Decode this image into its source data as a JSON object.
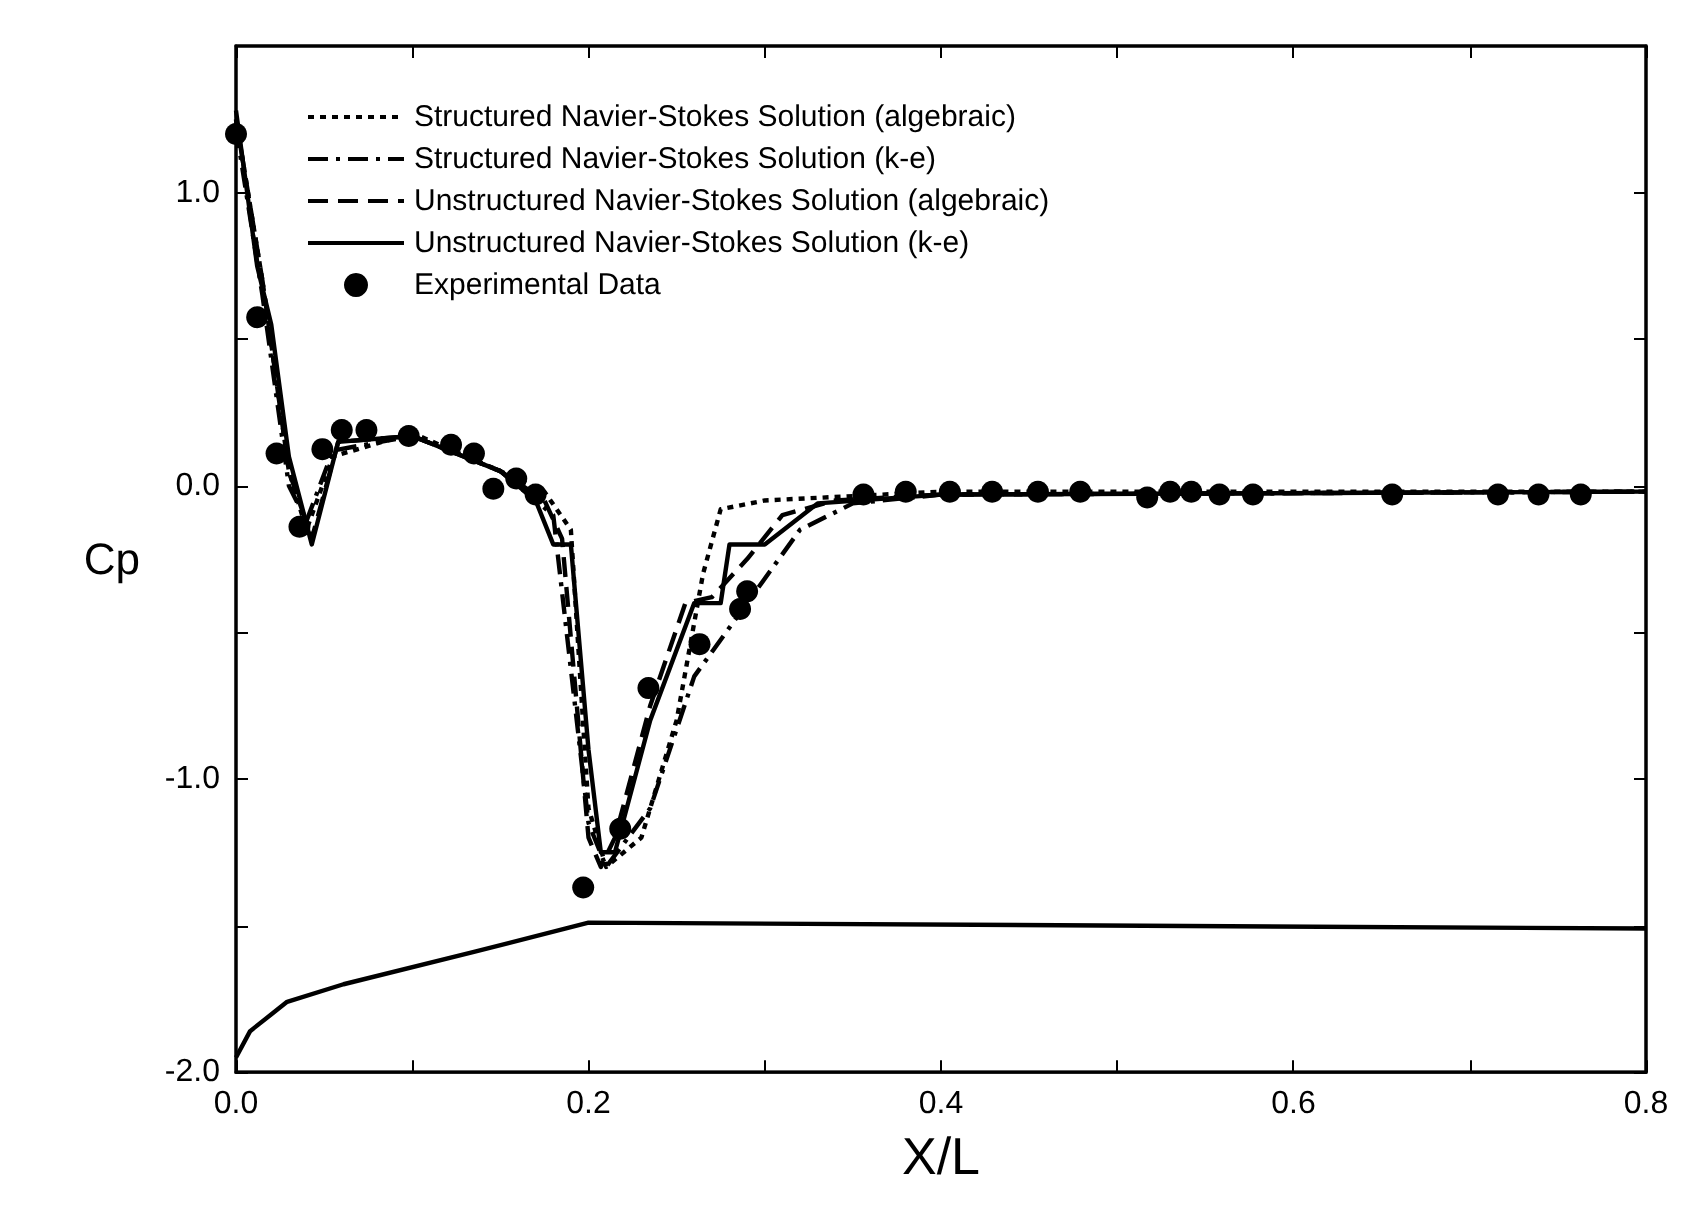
{
  "chart_data": {
    "type": "line",
    "xlabel": "X/L",
    "ylabel": "Cp",
    "xlim": [
      0,
      0.8
    ],
    "ylim": [
      -2,
      1.5
    ],
    "xticks": [
      {
        "value": 0,
        "label": "0.0"
      },
      {
        "value": 0.1,
        "label": null
      },
      {
        "value": 0.2,
        "label": "0.2"
      },
      {
        "value": 0.3,
        "label": null
      },
      {
        "value": 0.4,
        "label": "0.4"
      },
      {
        "value": 0.5,
        "label": null
      },
      {
        "value": 0.6,
        "label": "0.6"
      },
      {
        "value": 0.7,
        "label": null
      },
      {
        "value": 0.8,
        "label": "0.8"
      }
    ],
    "yticks": [
      {
        "value": -2,
        "label": "-2.0"
      },
      {
        "value": -1.5,
        "label": null
      },
      {
        "value": -1,
        "label": "-1.0"
      },
      {
        "value": -0.5,
        "label": null
      },
      {
        "value": 0,
        "label": "0.0"
      },
      {
        "value": 0.5,
        "label": null
      },
      {
        "value": 1,
        "label": "1.0"
      }
    ],
    "grid": false,
    "legend": "top left",
    "marker": "none",
    "series": [
      {
        "name": "Structured Navier-Stokes Solution (algebraic)",
        "color": "#000000",
        "line_style": "dotted",
        "x": [
          0,
          0.015,
          0.03,
          0.04,
          0.055,
          0.1,
          0.15,
          0.175,
          0.19,
          0.2,
          0.21,
          0.23,
          0.25,
          0.265,
          0.275,
          0.3,
          0.4,
          0.8
        ],
        "values": [
          1.25,
          0.7,
          0.05,
          -0.15,
          0.1,
          0.18,
          0.05,
          -0.02,
          -0.15,
          -1.1,
          -1.3,
          -1.2,
          -0.8,
          -0.3,
          -0.08,
          -0.05,
          -0.02,
          -0.02
        ]
      },
      {
        "name": "Structured Navier-Stokes Solution (k-e)",
        "color": "#000000",
        "line_style": "dashdot",
        "x": [
          0,
          0.015,
          0.03,
          0.04,
          0.055,
          0.1,
          0.15,
          0.18,
          0.2,
          0.21,
          0.235,
          0.26,
          0.29,
          0.32,
          0.35,
          0.4,
          0.8
        ],
        "values": [
          1.22,
          0.65,
          0,
          -0.12,
          0.12,
          0.17,
          0.05,
          -0.1,
          -1.15,
          -1.3,
          -1.1,
          -0.65,
          -0.4,
          -0.15,
          -0.06,
          -0.03,
          -0.02
        ]
      },
      {
        "name": "Unstructured Navier-Stokes Solution (algebraic)",
        "color": "#000000",
        "line_style": "dashed",
        "x": [
          0,
          0.015,
          0.03,
          0.043,
          0.058,
          0.1,
          0.15,
          0.175,
          0.185,
          0.2,
          0.207,
          0.215,
          0.235,
          0.255,
          0.27,
          0.29,
          0.31,
          0.34,
          0.4,
          0.8
        ],
        "values": [
          1.25,
          0.7,
          0.05,
          -0.18,
          0.15,
          0.17,
          0.05,
          -0.05,
          -0.18,
          -1.2,
          -1.3,
          -1.2,
          -0.75,
          -0.4,
          -0.38,
          -0.25,
          -0.1,
          -0.05,
          -0.03,
          -0.02
        ]
      },
      {
        "name": "Unstructured Navier-Stokes Solution (k-e)",
        "color": "#000000",
        "line_style": "solid",
        "x": [
          0,
          0.012,
          0.02,
          0.03,
          0.043,
          0.058,
          0.1,
          0.15,
          0.17,
          0.18,
          0.19,
          0.2,
          0.207,
          0.215,
          0.235,
          0.26,
          0.275,
          0.28,
          0.3,
          0.33,
          0.4,
          0.8
        ],
        "values": [
          1.28,
          0.75,
          0.55,
          0.1,
          -0.2,
          0.15,
          0.17,
          0.05,
          -0.05,
          -0.2,
          -0.2,
          -0.9,
          -1.25,
          -1.25,
          -0.8,
          -0.4,
          -0.4,
          -0.2,
          -0.2,
          -0.06,
          -0.03,
          -0.02
        ]
      },
      {
        "name": "Experimental Data",
        "type": "scatter",
        "marker": "circle",
        "color": "#000000",
        "x": [
          0,
          0.012,
          0.023,
          0.036,
          0.049,
          0.06,
          0.074,
          0.098,
          0.122,
          0.135,
          0.146,
          0.159,
          0.17,
          0.197,
          0.218,
          0.234,
          0.263,
          0.286,
          0.29,
          0.356,
          0.38,
          0.405,
          0.429,
          0.455,
          0.479,
          0.517,
          0.53,
          0.542,
          0.558,
          0.577,
          0.656,
          0.716,
          0.739,
          0.763
        ],
        "values": [
          1.2,
          0.575,
          0.11,
          -0.14,
          0.125,
          0.19,
          0.19,
          0.17,
          0.14,
          0.11,
          -0.01,
          0.025,
          -0.03,
          -1.37,
          -1.17,
          -0.69,
          -0.54,
          -0.42,
          -0.36,
          -0.03,
          -0.02,
          -0.02,
          -0.02,
          -0.02,
          -0.02,
          -0.04,
          -0.02,
          -0.02,
          -0.03,
          -0.03,
          -0.03,
          -0.03,
          -0.03,
          -0.03
        ]
      },
      {
        "color": "#000000",
        "line_style": "solid",
        "x": [
          0,
          0.008,
          0.029,
          0.061,
          0.135,
          0.2,
          0.8
        ],
        "values": [
          -1.95,
          -1.86,
          -1.76,
          -1.7,
          -1.59,
          -1.49,
          -1.51
        ]
      }
    ]
  }
}
